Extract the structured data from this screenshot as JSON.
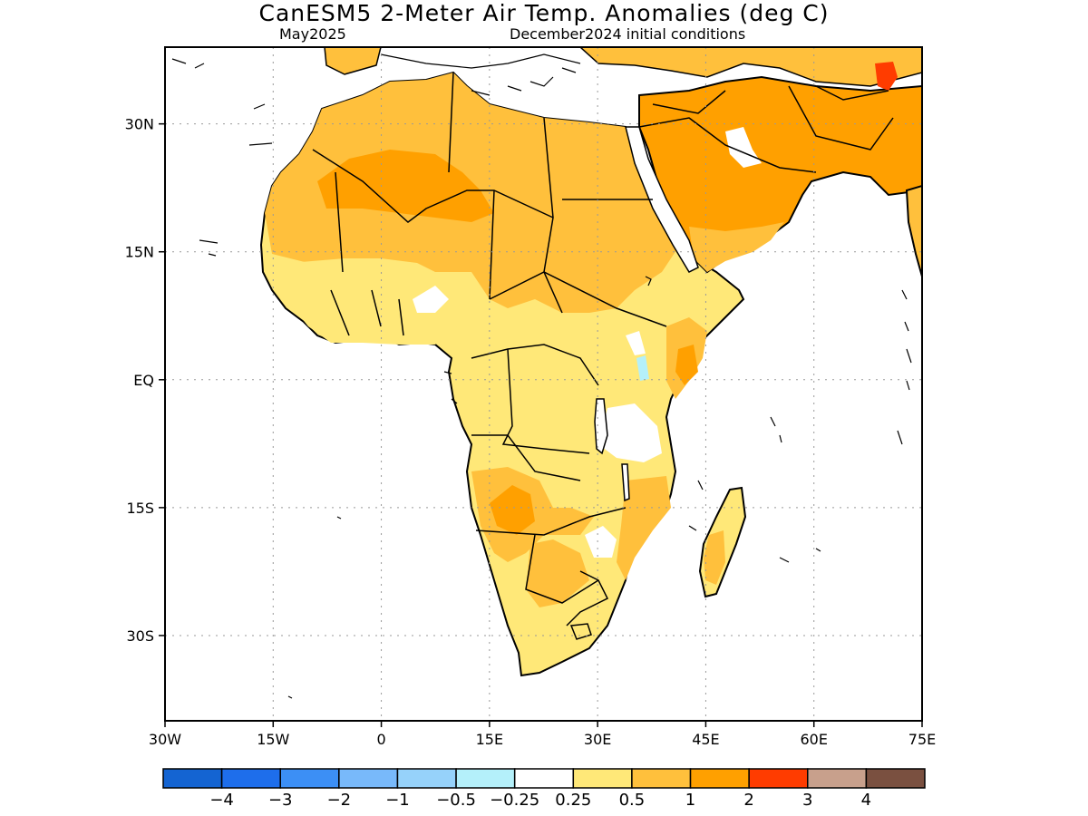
{
  "title": "CanESM5 2-Meter Air Temp. Anomalies (deg C)",
  "subtitle_left": "May2025",
  "subtitle_right": "December2024 initial conditions",
  "map": {
    "lon_range": [
      -30,
      75
    ],
    "lat_range": [
      -40,
      39
    ],
    "x_ticks": [
      "30W",
      "15W",
      "0",
      "15E",
      "30E",
      "45E",
      "60E",
      "75E"
    ],
    "y_ticks": [
      "30N",
      "15N",
      "EQ",
      "15S",
      "30S"
    ],
    "grid": "dotted"
  },
  "colorbar": {
    "colors": [
      "#1464d2",
      "#1e6eeb",
      "#3c8ff5",
      "#78b9fa",
      "#96d2fa",
      "#b4f0fa",
      "#ffffff",
      "#ffe878",
      "#ffc03c",
      "#ffa000",
      "#ff3c00",
      "#c8a08c",
      "#7a5040"
    ],
    "labels": [
      "−4",
      "−3",
      "−2",
      "−1",
      "−0.5",
      "−0.25",
      "0.25",
      "0.5",
      "1",
      "2",
      "3",
      "4"
    ]
  },
  "palette": {
    "land_outline": "#000000",
    "light_warm": "#ffe878",
    "mid_warm": "#ffc03c",
    "warm": "#ffa000",
    "hot": "#ff3c00",
    "cool": "#b4f0fa"
  }
}
